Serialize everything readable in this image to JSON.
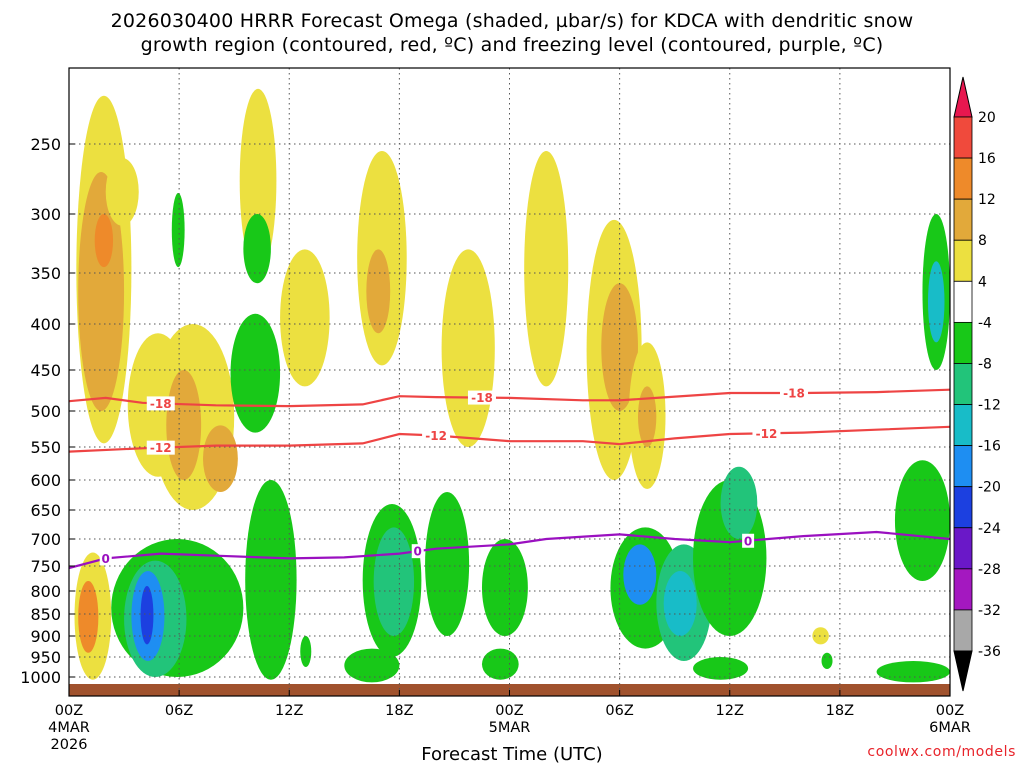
{
  "chart_data": {
    "type": "heatmap",
    "title_line1": "2026030400 HRRR Forecast Omega (shaded, µbar/s) for KDCA with dendritic snow",
    "title_line2": "growth region (contoured, red, ºC) and freezing level (contoured, purple, ºC)",
    "xlabel": "Forecast Time (UTC)",
    "credit": "coolwx.com/models",
    "x_range_hours": [
      0,
      48
    ],
    "x_ticks": [
      {
        "h": 0,
        "label": "00Z",
        "sub1": "4MAR",
        "sub2": "2026"
      },
      {
        "h": 6,
        "label": "06Z"
      },
      {
        "h": 12,
        "label": "12Z"
      },
      {
        "h": 18,
        "label": "18Z"
      },
      {
        "h": 24,
        "label": "00Z",
        "sub1": "5MAR"
      },
      {
        "h": 30,
        "label": "06Z"
      },
      {
        "h": 36,
        "label": "12Z"
      },
      {
        "h": 42,
        "label": "18Z"
      },
      {
        "h": 48,
        "label": "00Z",
        "sub1": "6MAR"
      }
    ],
    "y_ticks": [
      {
        "p": 250,
        "label": "250"
      },
      {
        "p": 300,
        "label": "300"
      },
      {
        "p": 350,
        "label": "350"
      },
      {
        "p": 400,
        "label": "400"
      },
      {
        "p": 450,
        "label": "450"
      },
      {
        "p": 500,
        "label": "500"
      },
      {
        "p": 550,
        "label": "550"
      },
      {
        "p": 600,
        "label": "600"
      },
      {
        "p": 650,
        "label": "650"
      },
      {
        "p": 700,
        "label": "700"
      },
      {
        "p": 750,
        "label": "750"
      },
      {
        "p": 800,
        "label": "800"
      },
      {
        "p": 850,
        "label": "850"
      },
      {
        "p": 900,
        "label": "900"
      },
      {
        "p": 950,
        "label": "950"
      },
      {
        "p": 1000,
        "label": "1000"
      }
    ],
    "colorbar": [
      {
        "label": "20",
        "color": "#e8174f"
      },
      {
        "label": "16",
        "color": "#f04a3c"
      },
      {
        "label": "12",
        "color": "#ee8a2a"
      },
      {
        "label": "8",
        "color": "#e2a93a"
      },
      {
        "label": "4",
        "color": "#ece040"
      },
      {
        "label": "-4",
        "color": "#ffffff"
      },
      {
        "label": "-8",
        "color": "#18c818"
      },
      {
        "label": "-12",
        "color": "#22c47a"
      },
      {
        "label": "-16",
        "color": "#18bcc8"
      },
      {
        "label": "-20",
        "color": "#1e8ef2"
      },
      {
        "label": "-24",
        "color": "#1c40e0"
      },
      {
        "label": "-28",
        "color": "#6a18c8"
      },
      {
        "label": "-32",
        "color": "#a418c0"
      },
      {
        "label": "-36",
        "color": "#a8a8a8"
      }
    ],
    "colorbar_bottom_color": "#000000",
    "ground_color": "#a0522d",
    "contours": [
      {
        "name": "-18",
        "color": "#ee4444",
        "points": [
          [
            0,
            488
          ],
          [
            2,
            484
          ],
          [
            4,
            490
          ],
          [
            8,
            493
          ],
          [
            12,
            494
          ],
          [
            16,
            492
          ],
          [
            18,
            482
          ],
          [
            20,
            483
          ],
          [
            24,
            484
          ],
          [
            28,
            487
          ],
          [
            30,
            487
          ],
          [
            32,
            484
          ],
          [
            36,
            478
          ],
          [
            40,
            478
          ],
          [
            44,
            477
          ],
          [
            48,
            474
          ]
        ],
        "labels": [
          {
            "h": 5,
            "text": "-18"
          },
          {
            "h": 22.5,
            "text": "-18"
          },
          {
            "h": 39.5,
            "text": "-18"
          }
        ]
      },
      {
        "name": "-12",
        "color": "#ee4444",
        "points": [
          [
            0,
            557
          ],
          [
            4,
            552
          ],
          [
            8,
            548
          ],
          [
            12,
            548
          ],
          [
            16,
            545
          ],
          [
            18,
            532
          ],
          [
            20,
            534
          ],
          [
            24,
            542
          ],
          [
            28,
            542
          ],
          [
            30,
            546
          ],
          [
            33,
            538
          ],
          [
            36,
            532
          ],
          [
            40,
            530
          ],
          [
            44,
            526
          ],
          [
            48,
            522
          ]
        ],
        "labels": [
          {
            "h": 5,
            "text": "-12"
          },
          {
            "h": 20,
            "text": "-12"
          },
          {
            "h": 38,
            "text": "-12"
          }
        ]
      },
      {
        "name": "0",
        "color": "#9a10c0",
        "points": [
          [
            0,
            754
          ],
          [
            2,
            736
          ],
          [
            5,
            727
          ],
          [
            8,
            731
          ],
          [
            12,
            736
          ],
          [
            15,
            734
          ],
          [
            18,
            727
          ],
          [
            20,
            718
          ],
          [
            24,
            710
          ],
          [
            26,
            700
          ],
          [
            30,
            692
          ],
          [
            33,
            700
          ],
          [
            36,
            706
          ],
          [
            40,
            695
          ],
          [
            44,
            688
          ],
          [
            48,
            700
          ]
        ],
        "labels": [
          {
            "h": 2,
            "text": "0"
          },
          {
            "h": 19,
            "text": "0"
          },
          {
            "h": 37,
            "text": "0"
          }
        ]
      }
    ],
    "regions": [
      {
        "h0": 0.4,
        "h1": 3.4,
        "p0": 215,
        "p1": 545,
        "c": "#ece040"
      },
      {
        "h0": 0.5,
        "h1": 3.0,
        "p0": 270,
        "p1": 500,
        "c": "#e2a93a"
      },
      {
        "h0": 1.4,
        "h1": 2.4,
        "p0": 300,
        "p1": 345,
        "c": "#ee8a2a"
      },
      {
        "h0": 3.2,
        "h1": 6.5,
        "p0": 410,
        "p1": 595,
        "c": "#ece040"
      },
      {
        "h0": 4.5,
        "h1": 9.0,
        "p0": 400,
        "p1": 650,
        "c": "#ece040"
      },
      {
        "h0": 5.3,
        "h1": 7.2,
        "p0": 450,
        "p1": 600,
        "c": "#e2a93a"
      },
      {
        "h0": 7.3,
        "h1": 9.2,
        "p0": 520,
        "p1": 620,
        "c": "#e2a93a"
      },
      {
        "h0": 2.0,
        "h1": 3.8,
        "p0": 260,
        "p1": 310,
        "c": "#ece040"
      },
      {
        "h0": 9.3,
        "h1": 11.3,
        "p0": 210,
        "p1": 350,
        "c": "#ece040"
      },
      {
        "h0": 5.6,
        "h1": 6.3,
        "p0": 285,
        "p1": 345,
        "c": "#18c818"
      },
      {
        "h0": 8.8,
        "h1": 11.5,
        "p0": 390,
        "p1": 530,
        "c": "#18c818"
      },
      {
        "h0": 9.5,
        "h1": 11.0,
        "p0": 300,
        "p1": 360,
        "c": "#18c818"
      },
      {
        "h0": 11.5,
        "h1": 14.2,
        "p0": 330,
        "p1": 470,
        "c": "#ece040"
      },
      {
        "h0": 15.7,
        "h1": 18.4,
        "p0": 255,
        "p1": 445,
        "c": "#ece040"
      },
      {
        "h0": 16.2,
        "h1": 17.5,
        "p0": 330,
        "p1": 410,
        "c": "#e2a93a"
      },
      {
        "h0": 20.3,
        "h1": 23.2,
        "p0": 330,
        "p1": 550,
        "c": "#ece040"
      },
      {
        "h0": 24.8,
        "h1": 27.2,
        "p0": 255,
        "p1": 470,
        "c": "#ece040"
      },
      {
        "h0": 28.2,
        "h1": 31.2,
        "p0": 305,
        "p1": 600,
        "c": "#ece040"
      },
      {
        "h0": 29.0,
        "h1": 31.0,
        "p0": 360,
        "p1": 500,
        "c": "#e2a93a"
      },
      {
        "h0": 30.5,
        "h1": 32.5,
        "p0": 420,
        "p1": 615,
        "c": "#ece040"
      },
      {
        "h0": 31.0,
        "h1": 32.0,
        "p0": 470,
        "p1": 550,
        "c": "#e2a93a"
      },
      {
        "h0": 46.5,
        "h1": 48,
        "p0": 300,
        "p1": 450,
        "c": "#18c818"
      },
      {
        "h0": 46.8,
        "h1": 47.7,
        "p0": 340,
        "p1": 420,
        "c": "#18bcc8"
      },
      {
        "h0": 0.3,
        "h1": 2.3,
        "p0": 725,
        "p1": 1005,
        "c": "#ece040"
      },
      {
        "h0": 0.5,
        "h1": 1.6,
        "p0": 780,
        "p1": 940,
        "c": "#ee8a2a"
      },
      {
        "h0": 2.3,
        "h1": 9.5,
        "p0": 700,
        "p1": 1000,
        "c": "#18c818"
      },
      {
        "h0": 3.0,
        "h1": 6.4,
        "p0": 740,
        "p1": 1000,
        "c": "#22c47a"
      },
      {
        "h0": 3.4,
        "h1": 5.2,
        "p0": 760,
        "p1": 960,
        "c": "#1e8ef2"
      },
      {
        "h0": 3.9,
        "h1": 4.6,
        "p0": 790,
        "p1": 920,
        "c": "#1c40e0"
      },
      {
        "h0": 9.6,
        "h1": 12.4,
        "p0": 600,
        "p1": 1005,
        "c": "#18c818"
      },
      {
        "h0": 12.6,
        "h1": 13.2,
        "p0": 900,
        "p1": 975,
        "c": "#18c818"
      },
      {
        "h0": 16.0,
        "h1": 19.2,
        "p0": 640,
        "p1": 950,
        "c": "#18c818"
      },
      {
        "h0": 16.6,
        "h1": 18.8,
        "p0": 680,
        "p1": 900,
        "c": "#22c47a"
      },
      {
        "h0": 15.0,
        "h1": 18.0,
        "p0": 930,
        "p1": 1010,
        "c": "#18c818"
      },
      {
        "h0": 19.4,
        "h1": 21.8,
        "p0": 620,
        "p1": 900,
        "c": "#18c818"
      },
      {
        "h0": 22.5,
        "h1": 25.0,
        "p0": 700,
        "p1": 900,
        "c": "#18c818"
      },
      {
        "h0": 22.5,
        "h1": 24.5,
        "p0": 930,
        "p1": 1005,
        "c": "#18c818"
      },
      {
        "h0": 29.5,
        "h1": 33.3,
        "p0": 680,
        "p1": 930,
        "c": "#18c818"
      },
      {
        "h0": 30.2,
        "h1": 32.0,
        "p0": 710,
        "p1": 830,
        "c": "#1e8ef2"
      },
      {
        "h0": 32.0,
        "h1": 35.0,
        "p0": 710,
        "p1": 960,
        "c": "#22c47a"
      },
      {
        "h0": 32.4,
        "h1": 34.2,
        "p0": 760,
        "p1": 900,
        "c": "#18bcc8"
      },
      {
        "h0": 34.0,
        "h1": 38.0,
        "p0": 600,
        "p1": 900,
        "c": "#18c818"
      },
      {
        "h0": 35.5,
        "h1": 37.5,
        "p0": 580,
        "p1": 700,
        "c": "#22c47a"
      },
      {
        "h0": 34.0,
        "h1": 37.0,
        "p0": 950,
        "p1": 1005,
        "c": "#18c818"
      },
      {
        "h0": 45.0,
        "h1": 48.0,
        "p0": 570,
        "p1": 780,
        "c": "#18c818"
      },
      {
        "h0": 44.0,
        "h1": 48.0,
        "p0": 960,
        "p1": 1010,
        "c": "#18c818"
      },
      {
        "h0": 40.5,
        "h1": 41.4,
        "p0": 880,
        "p1": 920,
        "c": "#ece040"
      },
      {
        "h0": 41.0,
        "h1": 41.6,
        "p0": 940,
        "p1": 980,
        "c": "#18c818"
      }
    ]
  }
}
